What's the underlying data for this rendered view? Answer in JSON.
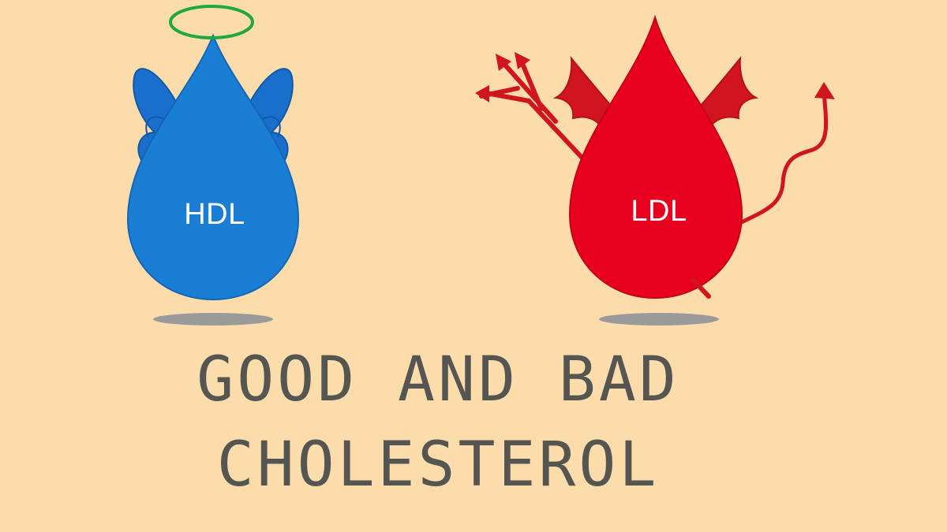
{
  "illustration": {
    "good_drop": {
      "label": "HDL",
      "color": "#1a7fd4",
      "wing_color": "#1465c0",
      "halo_color": "#1fa83b",
      "icon": "angel-drop-icon"
    },
    "bad_drop": {
      "label": "LDL",
      "color": "#e8001f",
      "accent_color": "#d01520",
      "icon": "devil-drop-icon"
    },
    "background_color": "#fcdcaa",
    "shadow_color": "#9a9a9a"
  },
  "headline": {
    "line1": "GOOD AND BAD",
    "line2": "CHOLESTEROL",
    "color": "#555551"
  }
}
